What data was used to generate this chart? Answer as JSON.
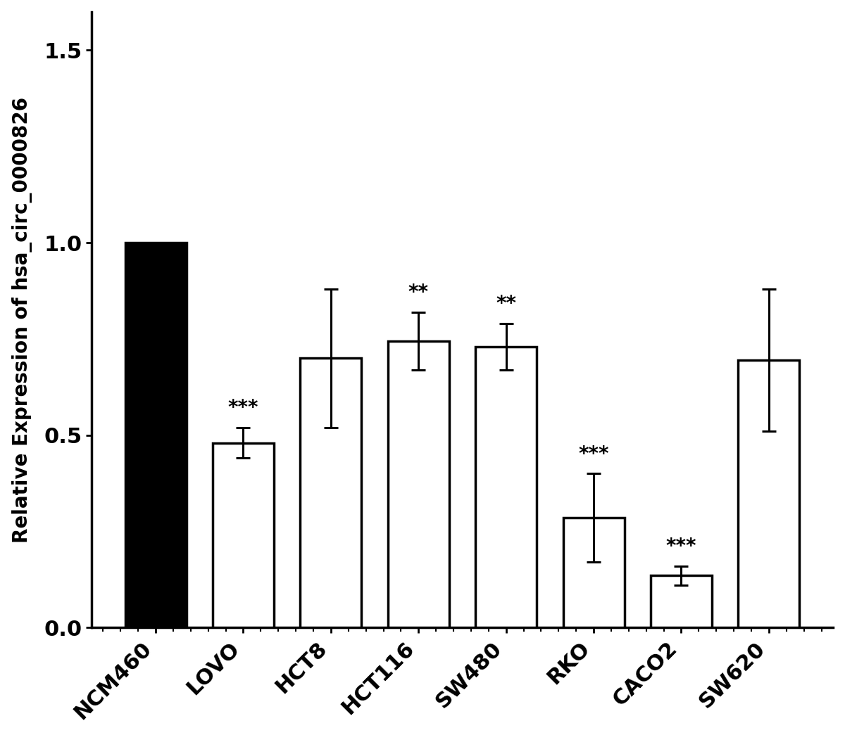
{
  "categories": [
    "NCM460",
    "LOVO",
    "HCT8",
    "HCT116",
    "SW480",
    "RKO",
    "CACO2",
    "SW620"
  ],
  "values": [
    1.0,
    0.48,
    0.7,
    0.745,
    0.73,
    0.285,
    0.135,
    0.695
  ],
  "errors": [
    0.0,
    0.04,
    0.18,
    0.075,
    0.06,
    0.115,
    0.025,
    0.185
  ],
  "bar_colors": [
    "#000000",
    "#ffffff",
    "#ffffff",
    "#ffffff",
    "#ffffff",
    "#ffffff",
    "#ffffff",
    "#ffffff"
  ],
  "bar_edgecolors": [
    "#000000",
    "#000000",
    "#000000",
    "#000000",
    "#000000",
    "#000000",
    "#000000",
    "#000000"
  ],
  "significance": [
    "",
    "***",
    "",
    "**",
    "**",
    "***",
    "***",
    ""
  ],
  "ylabel": "Relative Expression of hsa_circ_0000826",
  "ylim": [
    0.0,
    1.6
  ],
  "yticks": [
    0.0,
    0.5,
    1.0,
    1.5
  ],
  "ytick_labels": [
    "0.0",
    "0.5",
    "1.0",
    "1.5"
  ],
  "bar_width": 0.7,
  "spine_linewidth": 2.5,
  "tick_fontsize": 22,
  "label_fontsize": 20,
  "sig_fontsize": 20,
  "background_color": "#ffffff",
  "error_capsize": 7,
  "error_linewidth": 2.2,
  "minor_tick_count": 4
}
